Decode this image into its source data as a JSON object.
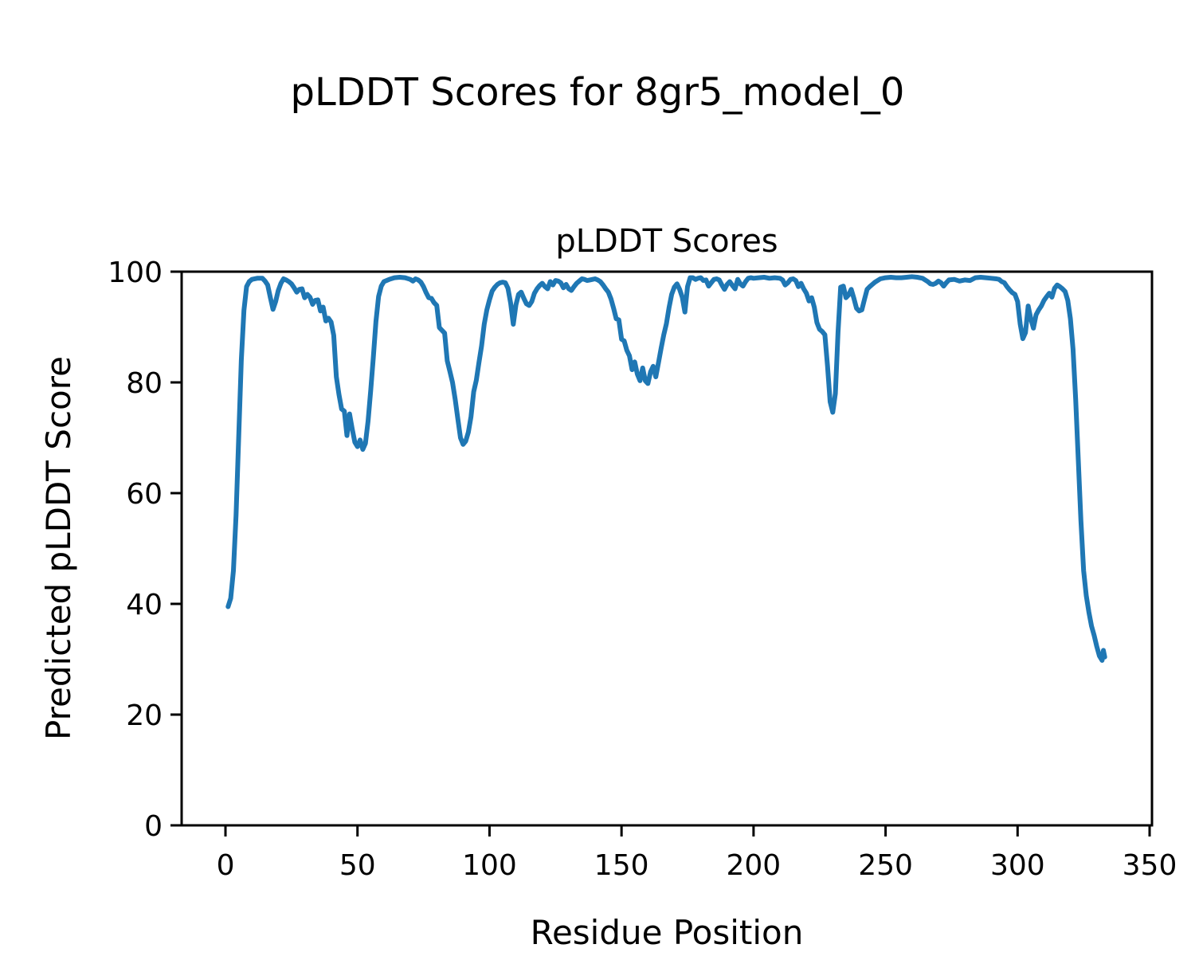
{
  "figure": {
    "suptitle": "pLDDT Scores for 8gr5_model_0",
    "axes_title": "pLDDT Scores",
    "xlabel": "Residue Position",
    "ylabel": "Predicted pLDDT Score"
  },
  "chart_data": {
    "type": "line",
    "title": "pLDDT Scores",
    "suptitle": "pLDDT Scores for 8gr5_model_0",
    "xlabel": "Residue Position",
    "ylabel": "Predicted pLDDT Score",
    "grid": false,
    "legend": null,
    "line_color": "#1f77b4",
    "line_width": 6,
    "spine_color": "#000000",
    "xlim": [
      -16.6,
      350.9
    ],
    "ylim": [
      0,
      100
    ],
    "x_ticks": [
      0,
      50,
      100,
      150,
      200,
      250,
      300,
      350
    ],
    "y_ticks": [
      0,
      20,
      40,
      60,
      80,
      100
    ],
    "series": [
      {
        "name": "pLDDT",
        "points": [
          [
            1,
            39.5
          ],
          [
            2,
            41
          ],
          [
            3,
            46
          ],
          [
            4,
            56
          ],
          [
            5,
            70
          ],
          [
            6,
            84
          ],
          [
            7,
            93
          ],
          [
            8,
            97.3
          ],
          [
            9,
            98.2
          ],
          [
            10,
            98.6
          ],
          [
            12,
            98.8
          ],
          [
            14,
            98.8
          ],
          [
            15,
            98.3
          ],
          [
            16,
            97.6
          ],
          [
            17,
            95.3
          ],
          [
            18,
            93.2
          ],
          [
            19,
            94.6
          ],
          [
            20,
            96.6
          ],
          [
            21,
            97.9
          ],
          [
            22,
            98.7
          ],
          [
            23,
            98.5
          ],
          [
            24,
            98.2
          ],
          [
            25,
            97.8
          ],
          [
            26,
            97.1
          ],
          [
            27,
            96.3
          ],
          [
            28,
            96.8
          ],
          [
            29,
            96.9
          ],
          [
            30,
            95.3
          ],
          [
            31,
            95.9
          ],
          [
            32,
            95.4
          ],
          [
            33,
            94.1
          ],
          [
            34,
            94.8
          ],
          [
            35,
            94.9
          ],
          [
            36,
            92.9
          ],
          [
            37,
            93.6
          ],
          [
            38,
            91.1
          ],
          [
            39,
            91.6
          ],
          [
            40,
            90.9
          ],
          [
            41,
            88.5
          ],
          [
            42,
            81
          ],
          [
            43,
            77.8
          ],
          [
            44,
            75.2
          ],
          [
            45,
            74.8
          ],
          [
            46,
            70.4
          ],
          [
            47,
            74.3
          ],
          [
            48,
            71.6
          ],
          [
            49,
            69.2
          ],
          [
            50,
            68.4
          ],
          [
            51,
            69.6
          ],
          [
            52,
            67.9
          ],
          [
            53,
            69
          ],
          [
            54,
            73
          ],
          [
            55,
            78.5
          ],
          [
            56,
            84.5
          ],
          [
            57,
            91
          ],
          [
            58,
            95.5
          ],
          [
            59,
            97.4
          ],
          [
            60,
            98.2
          ],
          [
            62,
            98.6
          ],
          [
            64,
            98.9
          ],
          [
            66,
            99
          ],
          [
            68,
            98.9
          ],
          [
            70,
            98.6
          ],
          [
            71,
            98.3
          ],
          [
            72,
            98.7
          ],
          [
            73,
            98.5
          ],
          [
            74,
            98.1
          ],
          [
            75,
            97.3
          ],
          [
            76,
            96.2
          ],
          [
            77,
            95.3
          ],
          [
            78,
            95.2
          ],
          [
            79,
            94.4
          ],
          [
            80,
            93.9
          ],
          [
            81,
            89.9
          ],
          [
            82,
            89.4
          ],
          [
            83,
            88.9
          ],
          [
            84,
            83.9
          ],
          [
            85,
            82
          ],
          [
            86,
            80
          ],
          [
            87,
            76.9
          ],
          [
            88,
            73.4
          ],
          [
            89,
            70
          ],
          [
            90,
            68.8
          ],
          [
            91,
            69.4
          ],
          [
            92,
            71
          ],
          [
            93,
            73.8
          ],
          [
            94,
            78.3
          ],
          [
            95,
            80.4
          ],
          [
            96,
            83.6
          ],
          [
            97,
            86.6
          ],
          [
            98,
            90.5
          ],
          [
            99,
            93.1
          ],
          [
            100,
            94.9
          ],
          [
            101,
            96.5
          ],
          [
            102,
            97.2
          ],
          [
            103,
            97.7
          ],
          [
            104,
            98
          ],
          [
            105,
            98.1
          ],
          [
            106,
            98
          ],
          [
            107,
            97
          ],
          [
            108,
            94.3
          ],
          [
            109,
            90.5
          ],
          [
            110,
            94
          ],
          [
            111,
            95.9
          ],
          [
            112,
            96.3
          ],
          [
            113,
            95.2
          ],
          [
            114,
            94.2
          ],
          [
            115,
            93.9
          ],
          [
            116,
            94.6
          ],
          [
            117,
            96.1
          ],
          [
            118,
            96.9
          ],
          [
            119,
            97.5
          ],
          [
            120,
            97.9
          ],
          [
            121,
            97.3
          ],
          [
            122,
            96.9
          ],
          [
            123,
            98.2
          ],
          [
            124,
            97.6
          ],
          [
            125,
            98.4
          ],
          [
            126,
            98.3
          ],
          [
            127,
            98
          ],
          [
            128,
            97.1
          ],
          [
            129,
            97.7
          ],
          [
            130,
            96.9
          ],
          [
            131,
            96.6
          ],
          [
            132,
            97.3
          ],
          [
            133,
            97.9
          ],
          [
            134,
            98.3
          ],
          [
            135,
            98.7
          ],
          [
            136,
            98.6
          ],
          [
            137,
            98.4
          ],
          [
            138,
            98.5
          ],
          [
            139,
            98.6
          ],
          [
            140,
            98.7
          ],
          [
            141,
            98.5
          ],
          [
            142,
            98.2
          ],
          [
            143,
            97.6
          ],
          [
            144,
            96.9
          ],
          [
            145,
            96.3
          ],
          [
            146,
            95.1
          ],
          [
            147,
            93.4
          ],
          [
            148,
            91.5
          ],
          [
            149,
            91.3
          ],
          [
            150,
            87.8
          ],
          [
            151,
            87.5
          ],
          [
            152,
            85.8
          ],
          [
            153,
            84.8
          ],
          [
            154,
            82.3
          ],
          [
            155,
            83.7
          ],
          [
            156,
            81.5
          ],
          [
            157,
            80.3
          ],
          [
            158,
            82.6
          ],
          [
            159,
            80.3
          ],
          [
            160,
            79.8
          ],
          [
            161,
            81.9
          ],
          [
            162,
            82.9
          ],
          [
            163,
            81
          ],
          [
            164,
            83.6
          ],
          [
            165,
            86.2
          ],
          [
            166,
            88.6
          ],
          [
            167,
            90.6
          ],
          [
            168,
            93.5
          ],
          [
            169,
            95.9
          ],
          [
            170,
            97.2
          ],
          [
            171,
            97.8
          ],
          [
            172,
            96.8
          ],
          [
            173,
            95.4
          ],
          [
            174,
            92.7
          ],
          [
            175,
            97.3
          ],
          [
            176,
            98.9
          ],
          [
            177,
            98.9
          ],
          [
            178,
            98.6
          ],
          [
            179,
            98.8
          ],
          [
            180,
            98.9
          ],
          [
            181,
            98.4
          ],
          [
            182,
            98.5
          ],
          [
            183,
            97.4
          ],
          [
            184,
            98
          ],
          [
            185,
            98.6
          ],
          [
            186,
            98.7
          ],
          [
            187,
            98.5
          ],
          [
            188,
            97.6
          ],
          [
            189,
            96.8
          ],
          [
            190,
            97.7
          ],
          [
            191,
            98.2
          ],
          [
            192,
            97.5
          ],
          [
            193,
            96.9
          ],
          [
            194,
            98.6
          ],
          [
            195,
            97.8
          ],
          [
            196,
            97.4
          ],
          [
            197,
            98.2
          ],
          [
            198,
            98.8
          ],
          [
            199,
            98.9
          ],
          [
            200,
            98.8
          ],
          [
            202,
            98.9
          ],
          [
            204,
            99
          ],
          [
            206,
            98.8
          ],
          [
            208,
            98.9
          ],
          [
            210,
            98.8
          ],
          [
            211,
            98.5
          ],
          [
            212,
            97.6
          ],
          [
            213,
            98
          ],
          [
            214,
            98.6
          ],
          [
            215,
            98.7
          ],
          [
            216,
            98.4
          ],
          [
            217,
            97.3
          ],
          [
            218,
            97.9
          ],
          [
            219,
            96.9
          ],
          [
            220,
            96.1
          ],
          [
            221,
            94.7
          ],
          [
            222,
            95.3
          ],
          [
            223,
            93.6
          ],
          [
            224,
            90.8
          ],
          [
            225,
            89.6
          ],
          [
            226,
            89.2
          ],
          [
            227,
            88.6
          ],
          [
            228,
            83
          ],
          [
            229,
            76.5
          ],
          [
            230,
            74.6
          ],
          [
            231,
            78
          ],
          [
            232,
            89
          ],
          [
            233,
            97.2
          ],
          [
            234,
            97.4
          ],
          [
            235,
            95.3
          ],
          [
            236,
            95.8
          ],
          [
            237,
            96.8
          ],
          [
            238,
            95.2
          ],
          [
            239,
            93.4
          ],
          [
            240,
            92.9
          ],
          [
            241,
            93.1
          ],
          [
            242,
            95
          ],
          [
            243,
            96.8
          ],
          [
            244,
            97.3
          ],
          [
            245,
            97.7
          ],
          [
            246,
            98.1
          ],
          [
            248,
            98.7
          ],
          [
            250,
            98.9
          ],
          [
            252,
            99
          ],
          [
            254,
            98.9
          ],
          [
            256,
            98.9
          ],
          [
            258,
            99
          ],
          [
            260,
            99.1
          ],
          [
            262,
            99
          ],
          [
            264,
            98.8
          ],
          [
            266,
            98.2
          ],
          [
            267,
            97.8
          ],
          [
            268,
            97.7
          ],
          [
            269,
            97.9
          ],
          [
            270,
            98.3
          ],
          [
            271,
            98
          ],
          [
            272,
            97.4
          ],
          [
            273,
            98
          ],
          [
            274,
            98.5
          ],
          [
            276,
            98.6
          ],
          [
            278,
            98.3
          ],
          [
            280,
            98.5
          ],
          [
            282,
            98.4
          ],
          [
            284,
            98.9
          ],
          [
            286,
            99
          ],
          [
            288,
            98.9
          ],
          [
            290,
            98.8
          ],
          [
            292,
            98.7
          ],
          [
            293,
            98.6
          ],
          [
            294,
            98.2
          ],
          [
            295,
            98
          ],
          [
            296,
            97.3
          ],
          [
            297,
            96.7
          ],
          [
            298,
            96.2
          ],
          [
            299,
            95.9
          ],
          [
            300,
            94.6
          ],
          [
            301,
            90.5
          ],
          [
            302,
            87.9
          ],
          [
            303,
            89
          ],
          [
            304,
            93.8
          ],
          [
            305,
            91.5
          ],
          [
            306,
            89.8
          ],
          [
            307,
            92.2
          ],
          [
            308,
            93.1
          ],
          [
            309,
            93.8
          ],
          [
            310,
            94.8
          ],
          [
            311,
            95.5
          ],
          [
            312,
            96.1
          ],
          [
            313,
            95.4
          ],
          [
            314,
            97
          ],
          [
            315,
            97.6
          ],
          [
            316,
            97.3
          ],
          [
            317,
            96.9
          ],
          [
            318,
            96.4
          ],
          [
            319,
            94.8
          ],
          [
            320,
            91.5
          ],
          [
            321,
            86
          ],
          [
            322,
            77
          ],
          [
            323,
            66
          ],
          [
            324,
            55
          ],
          [
            325,
            46
          ],
          [
            326,
            41.5
          ],
          [
            327,
            38.5
          ],
          [
            328,
            36
          ],
          [
            329,
            34.3
          ],
          [
            330,
            32.3
          ],
          [
            331,
            30.6
          ],
          [
            332,
            29.8
          ],
          [
            332.5,
            31.6
          ],
          [
            333,
            30.4
          ]
        ]
      }
    ]
  }
}
